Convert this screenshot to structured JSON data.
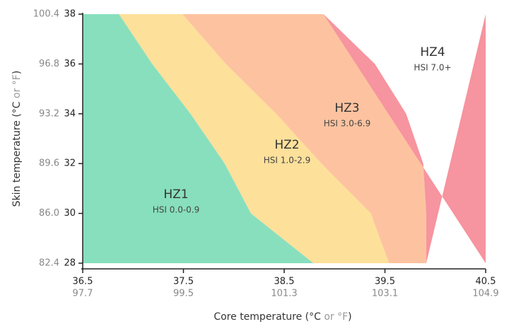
{
  "chart_data": {
    "type": "zones",
    "xlabel": [
      "Core temperature (°C ",
      "or °F",
      ")"
    ],
    "ylabel": [
      "Skin temperature (°C ",
      "or °F",
      ")"
    ],
    "xlim": [
      36.5,
      40.5
    ],
    "xticks": [
      36.5,
      37.5,
      38.5,
      39.5,
      40.5
    ],
    "xticks_f": [
      97.7,
      99.5,
      101.3,
      103.1,
      104.9
    ],
    "ylim": [
      28,
      38
    ],
    "yticks": [
      28,
      30,
      32,
      34,
      36,
      38
    ],
    "yticks_f": [
      82.4,
      {
        "value": 86,
        "label": "86.0"
      },
      89.6,
      93.2,
      96.8,
      100.4
    ],
    "zones": [
      {
        "name": "HZ1",
        "label": "HSI 0.0-0.9",
        "color": "#88dfbd"
      },
      {
        "name": "HZ2",
        "label": "HSI 1.0-2.9",
        "color": "#fde09a"
      },
      {
        "name": "HZ3",
        "label": "HSI 3.0-6.9",
        "color": "#fdc3a0"
      },
      {
        "name": "HZ4",
        "label": "HSI 7.0+",
        "color": "#f6949f"
      }
    ],
    "boundary_y": [
      28,
      30,
      32,
      34,
      36,
      38
    ],
    "boundaries": [
      [
        38.79,
        38.17,
        37.91,
        37.57,
        37.19,
        36.86
      ],
      [
        39.54,
        39.36,
        38.87,
        38.42,
        37.92,
        37.49
      ],
      [
        39.91,
        39.91,
        39.88,
        39.71,
        39.4,
        38.89
      ]
    ]
  }
}
